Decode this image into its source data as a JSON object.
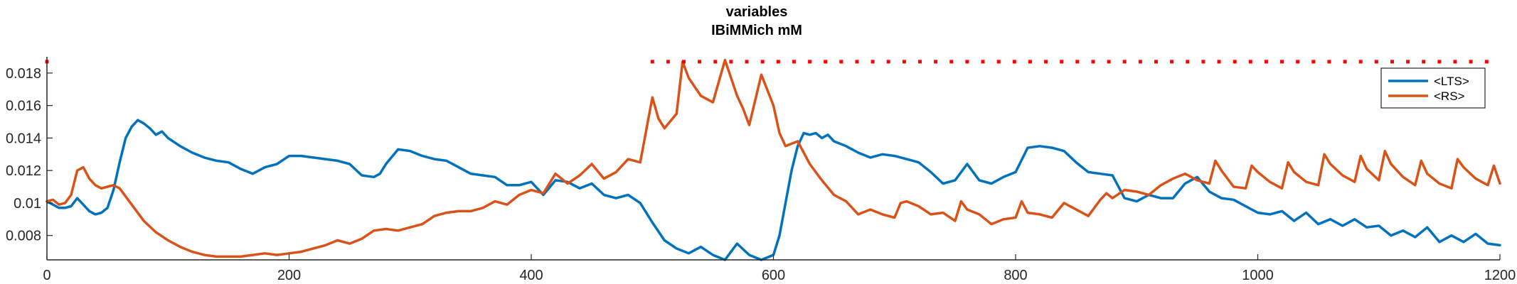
{
  "chart_data": {
    "type": "line",
    "title": "variables",
    "subtitle": "IBiMMich mM",
    "xlabel": "",
    "ylabel": "",
    "xlim": [
      0,
      1200
    ],
    "ylim": [
      0.0065,
      0.019
    ],
    "xticks": [
      0,
      200,
      400,
      600,
      800,
      1000,
      1200
    ],
    "xtick_labels": [
      "0",
      "200",
      "400",
      "600",
      "800",
      "1000",
      "1200"
    ],
    "yticks": [
      0.008,
      0.01,
      0.012,
      0.014,
      0.016,
      0.018
    ],
    "ytick_labels": [
      "0.008",
      "0.01",
      "0.012",
      "0.014",
      "0.016",
      "0.018"
    ],
    "grid": false,
    "legend_position": "top-right",
    "series": [
      {
        "name": "<LTS>",
        "color": "#0072BD",
        "x": [
          0,
          5,
          10,
          15,
          20,
          25,
          30,
          35,
          40,
          45,
          50,
          55,
          60,
          65,
          70,
          75,
          80,
          85,
          90,
          95,
          100,
          110,
          120,
          130,
          140,
          150,
          160,
          170,
          175,
          180,
          190,
          200,
          210,
          220,
          230,
          240,
          250,
          260,
          270,
          275,
          280,
          290,
          300,
          310,
          320,
          330,
          340,
          350,
          360,
          370,
          380,
          390,
          400,
          410,
          420,
          430,
          440,
          450,
          460,
          470,
          480,
          490,
          500,
          510,
          520,
          530,
          540,
          550,
          560,
          570,
          580,
          590,
          600,
          605,
          610,
          615,
          620,
          625,
          630,
          635,
          640,
          645,
          650,
          660,
          670,
          680,
          690,
          700,
          710,
          720,
          730,
          740,
          750,
          760,
          770,
          780,
          790,
          800,
          810,
          820,
          830,
          840,
          850,
          860,
          870,
          880,
          890,
          900,
          910,
          920,
          930,
          940,
          950,
          960,
          970,
          980,
          990,
          1000,
          1010,
          1020,
          1030,
          1040,
          1050,
          1060,
          1070,
          1080,
          1090,
          1100,
          1110,
          1120,
          1130,
          1140,
          1150,
          1160,
          1170,
          1180,
          1190,
          1200
        ],
        "y": [
          0.0101,
          0.0099,
          0.0097,
          0.0097,
          0.0098,
          0.0103,
          0.0099,
          0.0095,
          0.0093,
          0.0094,
          0.0097,
          0.0108,
          0.0125,
          0.014,
          0.0147,
          0.0151,
          0.0149,
          0.0146,
          0.0142,
          0.0144,
          0.014,
          0.0135,
          0.0131,
          0.0128,
          0.0126,
          0.0125,
          0.0121,
          0.0118,
          0.012,
          0.0122,
          0.0124,
          0.0129,
          0.0129,
          0.0128,
          0.0127,
          0.0126,
          0.0124,
          0.0117,
          0.0116,
          0.0118,
          0.0124,
          0.0133,
          0.0132,
          0.0129,
          0.0127,
          0.0126,
          0.0122,
          0.0118,
          0.0117,
          0.0116,
          0.0111,
          0.0111,
          0.0113,
          0.0105,
          0.0114,
          0.0113,
          0.0109,
          0.0112,
          0.0105,
          0.0103,
          0.0105,
          0.01,
          0.0088,
          0.0077,
          0.0072,
          0.0069,
          0.0073,
          0.0068,
          0.0065,
          0.0075,
          0.0068,
          0.0065,
          0.0068,
          0.008,
          0.01,
          0.012,
          0.0135,
          0.0143,
          0.0142,
          0.0143,
          0.014,
          0.0142,
          0.0138,
          0.0135,
          0.0131,
          0.0128,
          0.013,
          0.0129,
          0.0127,
          0.0125,
          0.0119,
          0.0112,
          0.0114,
          0.0124,
          0.0114,
          0.0112,
          0.0116,
          0.0119,
          0.0134,
          0.0135,
          0.0134,
          0.0132,
          0.0125,
          0.0119,
          0.0118,
          0.0117,
          0.0103,
          0.0101,
          0.0105,
          0.0103,
          0.0103,
          0.0112,
          0.0116,
          0.0107,
          0.0103,
          0.0102,
          0.0098,
          0.0094,
          0.0093,
          0.0095,
          0.0089,
          0.0094,
          0.0087,
          0.009,
          0.0086,
          0.009,
          0.0085,
          0.0086,
          0.008,
          0.0083,
          0.0079,
          0.0085,
          0.0076,
          0.008,
          0.0076,
          0.0081,
          0.0075,
          0.0074
        ]
      },
      {
        "name": "<RS>",
        "color": "#D95319",
        "x": [
          0,
          5,
          10,
          15,
          20,
          25,
          30,
          35,
          40,
          45,
          50,
          55,
          60,
          70,
          80,
          90,
          100,
          110,
          120,
          130,
          140,
          150,
          160,
          170,
          180,
          190,
          200,
          210,
          220,
          230,
          240,
          250,
          260,
          270,
          280,
          290,
          300,
          310,
          320,
          330,
          340,
          350,
          360,
          370,
          380,
          390,
          400,
          410,
          420,
          430,
          440,
          450,
          460,
          470,
          480,
          490,
          500,
          505,
          510,
          520,
          525,
          530,
          540,
          550,
          555,
          560,
          570,
          575,
          580,
          590,
          600,
          605,
          610,
          620,
          630,
          640,
          650,
          660,
          670,
          680,
          690,
          700,
          705,
          710,
          720,
          730,
          740,
          750,
          755,
          760,
          770,
          780,
          790,
          800,
          805,
          810,
          820,
          830,
          840,
          850,
          860,
          870,
          875,
          880,
          890,
          900,
          910,
          920,
          930,
          940,
          950,
          960,
          965,
          970,
          980,
          990,
          995,
          1000,
          1010,
          1020,
          1025,
          1030,
          1040,
          1050,
          1055,
          1060,
          1070,
          1080,
          1085,
          1090,
          1100,
          1105,
          1110,
          1120,
          1130,
          1135,
          1140,
          1150,
          1160,
          1165,
          1170,
          1180,
          1190,
          1195,
          1200
        ],
        "y": [
          0.0101,
          0.0102,
          0.0099,
          0.01,
          0.0105,
          0.012,
          0.0122,
          0.0115,
          0.0111,
          0.0109,
          0.011,
          0.0111,
          0.0109,
          0.0099,
          0.0089,
          0.0082,
          0.0077,
          0.0073,
          0.007,
          0.0068,
          0.0067,
          0.0067,
          0.0067,
          0.0068,
          0.0069,
          0.0068,
          0.0069,
          0.007,
          0.0072,
          0.0074,
          0.0077,
          0.0075,
          0.0078,
          0.0083,
          0.0084,
          0.0083,
          0.0085,
          0.0087,
          0.0092,
          0.0094,
          0.0095,
          0.0095,
          0.0097,
          0.0101,
          0.0099,
          0.0105,
          0.0108,
          0.0106,
          0.0118,
          0.0112,
          0.0117,
          0.0124,
          0.0115,
          0.0119,
          0.0127,
          0.0125,
          0.0165,
          0.0152,
          0.0146,
          0.0155,
          0.0187,
          0.0177,
          0.0166,
          0.0162,
          0.0175,
          0.0188,
          0.0166,
          0.0158,
          0.0148,
          0.0179,
          0.016,
          0.0143,
          0.0135,
          0.0138,
          0.0124,
          0.0114,
          0.0105,
          0.0101,
          0.0093,
          0.0096,
          0.0093,
          0.0091,
          0.01,
          0.0101,
          0.0098,
          0.0093,
          0.0094,
          0.0089,
          0.0101,
          0.0096,
          0.0093,
          0.0087,
          0.009,
          0.0091,
          0.0101,
          0.0094,
          0.0093,
          0.0091,
          0.01,
          0.0096,
          0.0092,
          0.0102,
          0.0106,
          0.0103,
          0.0108,
          0.0107,
          0.0105,
          0.0111,
          0.0115,
          0.0118,
          0.0114,
          0.0112,
          0.0126,
          0.012,
          0.011,
          0.0109,
          0.0123,
          0.0119,
          0.0113,
          0.0109,
          0.0125,
          0.0119,
          0.0113,
          0.0111,
          0.013,
          0.0124,
          0.0117,
          0.0113,
          0.0129,
          0.0121,
          0.0114,
          0.0132,
          0.0124,
          0.0116,
          0.0111,
          0.0126,
          0.0118,
          0.0112,
          0.0109,
          0.0127,
          0.0122,
          0.0115,
          0.0111,
          0.0123,
          0.0112
        ]
      }
    ],
    "markers": {
      "color": "#FF0000",
      "y": 0.0187,
      "x": [
        0,
        500,
        513,
        526,
        539,
        552,
        565,
        578,
        591,
        604,
        617,
        630,
        643,
        656,
        669,
        682,
        695,
        708,
        721,
        734,
        747,
        760,
        773,
        786,
        799,
        812,
        825,
        838,
        851,
        864,
        877,
        890,
        903,
        916,
        929,
        942,
        955,
        968,
        981,
        994,
        1007,
        1020,
        1033,
        1046,
        1059,
        1072,
        1085,
        1098,
        1111,
        1124,
        1137,
        1150,
        1163,
        1176,
        1189
      ]
    }
  }
}
